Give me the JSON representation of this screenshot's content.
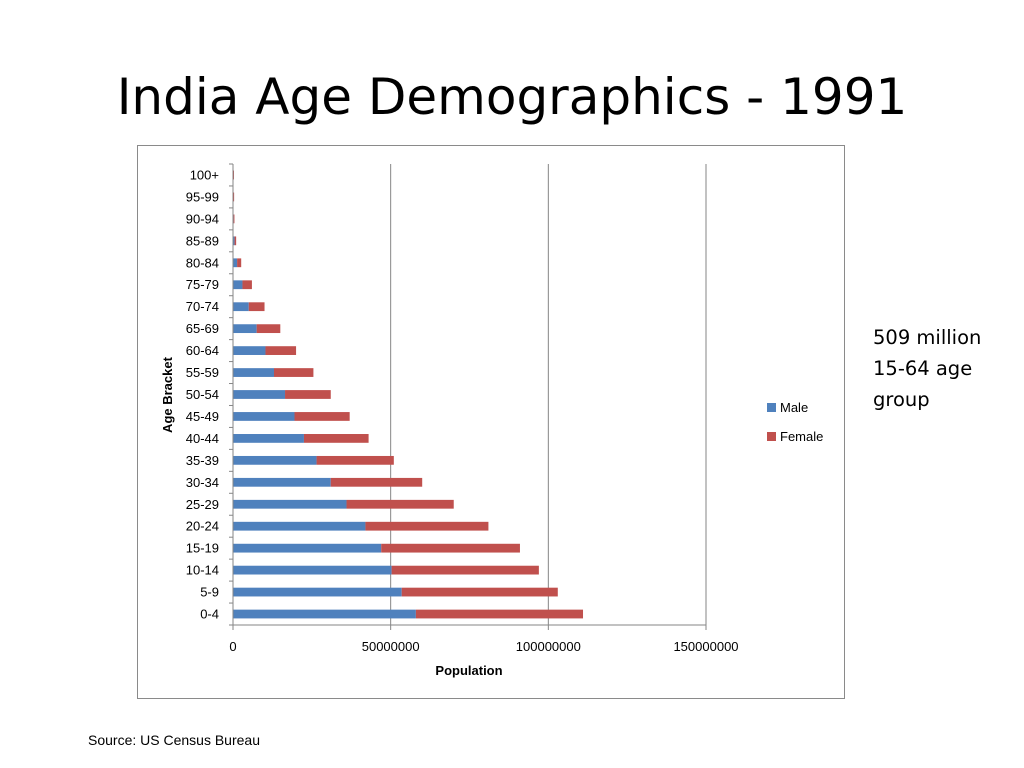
{
  "slide": {
    "title": "India Age Demographics - 1991",
    "callout_lines": [
      "509 million",
      "15-64 age",
      "group"
    ],
    "source": "Source: US Census Bureau"
  },
  "colors": {
    "male": "#4F81BD",
    "female": "#C0504D",
    "grid": "#868686",
    "frame": "#8a8a8a"
  },
  "chart_data": {
    "type": "bar",
    "orientation": "horizontal",
    "stacked": true,
    "xlabel": "Population",
    "ylabel": "Age Bracket",
    "xlim": [
      0,
      150000000
    ],
    "xticks": [
      0,
      50000000,
      100000000,
      150000000
    ],
    "xtick_labels": [
      "0",
      "50000000",
      "100000000",
      "150000000"
    ],
    "grid": "vertical major gridlines",
    "legend_position": "right",
    "categories": [
      "0-4",
      "5-9",
      "10-14",
      "15-19",
      "20-24",
      "25-29",
      "30-34",
      "35-39",
      "40-44",
      "45-49",
      "50-54",
      "55-59",
      "60-64",
      "65-69",
      "70-74",
      "75-79",
      "80-84",
      "85-89",
      "90-94",
      "95-99",
      "100+"
    ],
    "series": [
      {
        "name": "Male",
        "values": [
          58000000,
          53500000,
          50300000,
          47000000,
          42000000,
          36000000,
          31000000,
          26500000,
          22500000,
          19500000,
          16500000,
          13000000,
          10300000,
          7500000,
          5000000,
          3000000,
          1300000,
          500000,
          200000,
          100000,
          50000
        ]
      },
      {
        "name": "Female",
        "values": [
          53000000,
          49500000,
          46700000,
          44000000,
          39000000,
          34000000,
          29000000,
          24500000,
          20500000,
          17500000,
          14500000,
          12500000,
          9700000,
          7500000,
          5000000,
          3000000,
          1300000,
          500000,
          200000,
          100000,
          50000
        ]
      }
    ]
  }
}
